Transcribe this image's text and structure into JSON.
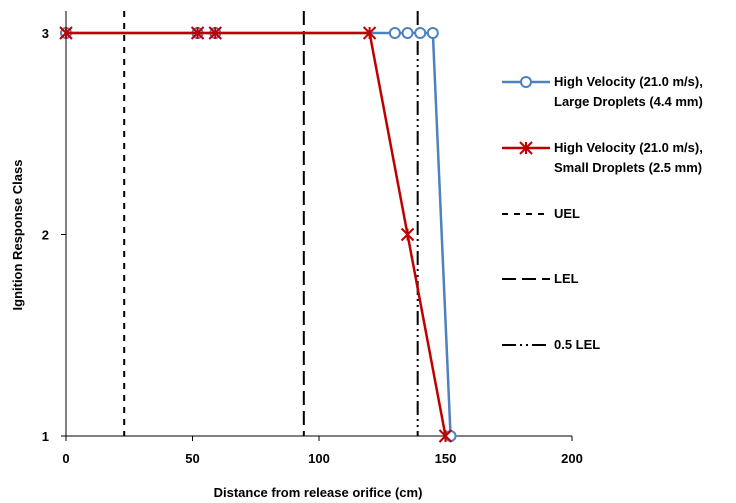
{
  "chart_data": {
    "type": "line",
    "title": "",
    "xlabel": "Distance from release orifice (cm)",
    "ylabel": "Ignition  Response Class",
    "xlim": [
      0,
      200
    ],
    "ylim": [
      1,
      3
    ],
    "x_ticks": [
      0,
      50,
      100,
      150,
      200
    ],
    "y_ticks": [
      1,
      2,
      3
    ],
    "grid": false,
    "legend_position": "right",
    "series": [
      {
        "name_line1": "High Velocity (21.0 m/s),",
        "name_line2": "Large Droplets (4.4 mm)",
        "color": "#4F81BD",
        "marker": "circle",
        "x": [
          0,
          52,
          59,
          130,
          135,
          140,
          145,
          152
        ],
        "y": [
          3,
          3,
          3,
          3,
          3,
          3,
          3,
          1
        ]
      },
      {
        "name_line1": "High Velocity (21.0 m/s),",
        "name_line2": "Small Droplets (2.5 mm)",
        "color": "#C00000",
        "marker": "asterisk",
        "x": [
          0,
          52,
          59,
          120,
          135,
          150
        ],
        "y": [
          3,
          3,
          3,
          3,
          2,
          1
        ]
      }
    ],
    "reference_lines": [
      {
        "name": "UEL",
        "x": 23,
        "dash": "dashed"
      },
      {
        "name": "LEL",
        "x": 94,
        "dash": "long-dash"
      },
      {
        "name": "0.5 LEL",
        "x": 139,
        "dash": "dash-dot-dot"
      }
    ]
  }
}
